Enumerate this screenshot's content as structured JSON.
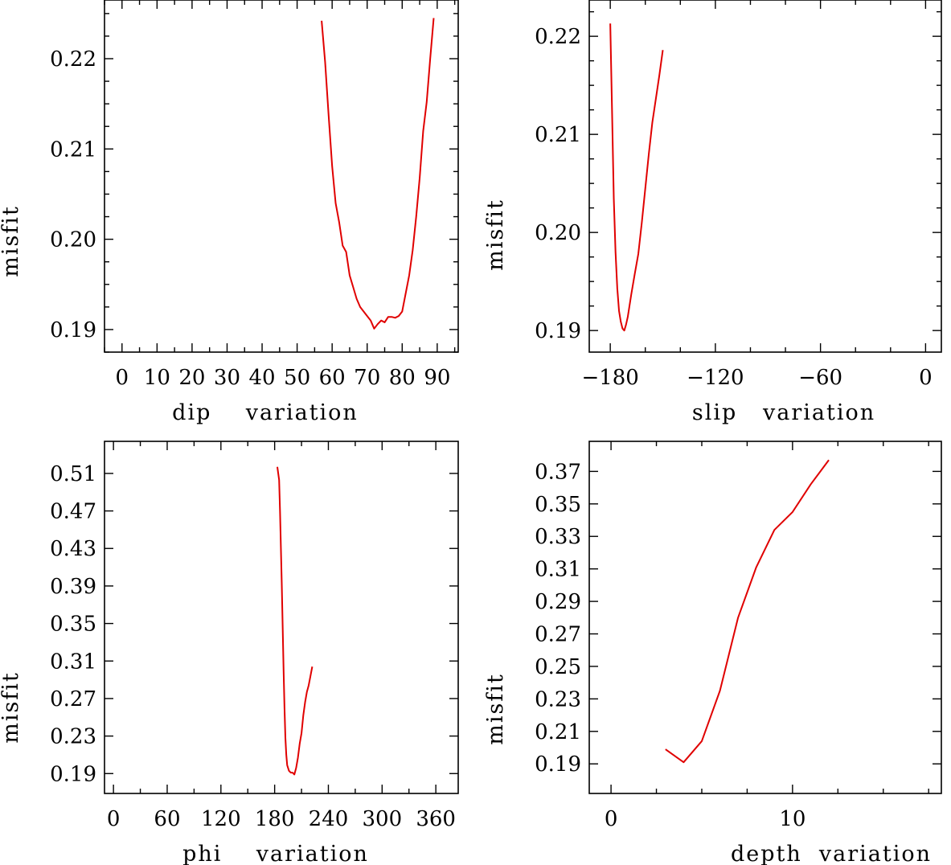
{
  "chart_data": [
    {
      "type": "line",
      "xlabel": "dip    variation",
      "ylabel": "misfit",
      "xlim": [
        -5,
        96
      ],
      "ylim": [
        0.1875,
        0.2265
      ],
      "xticks": [
        0,
        10,
        20,
        30,
        40,
        50,
        60,
        70,
        80,
        90
      ],
      "xtick_labels": [
        "0",
        "10",
        "20",
        "30",
        "40",
        "50",
        "60",
        "70",
        "80",
        "90"
      ],
      "yticks": [
        0.19,
        0.2,
        0.21,
        0.22
      ],
      "ytick_labels": [
        "0.19",
        "0.20",
        "0.21",
        "0.22"
      ],
      "line_color": "#e00000",
      "series": [
        {
          "x": [
            57,
            58,
            59,
            60,
            61,
            62,
            63,
            64,
            65,
            66,
            67,
            68,
            69,
            70,
            71,
            72,
            73,
            74,
            75,
            76,
            77,
            78,
            79,
            80,
            81,
            82,
            83,
            84,
            85,
            86,
            87,
            88,
            89
          ],
          "y": [
            0.2242,
            0.2196,
            0.2137,
            0.2081,
            0.204,
            0.2019,
            0.1993,
            0.1986,
            0.196,
            0.1947,
            0.1934,
            0.1925,
            0.192,
            0.1915,
            0.191,
            0.1901,
            0.1906,
            0.191,
            0.1908,
            0.1914,
            0.1914,
            0.1913,
            0.1915,
            0.192,
            0.194,
            0.196,
            0.1988,
            0.2025,
            0.2068,
            0.212,
            0.2152,
            0.22,
            0.2245
          ]
        }
      ]
    },
    {
      "type": "line",
      "xlabel": "slip   variation",
      "ylabel": "misfit",
      "xlim": [
        -192,
        9
      ],
      "ylim": [
        0.1878,
        0.2237
      ],
      "xticks": [
        -180,
        -120,
        -60,
        0
      ],
      "xtick_labels": [
        "−180",
        "−120",
        "−60",
        "0"
      ],
      "yticks": [
        0.19,
        0.2,
        0.21,
        0.22
      ],
      "ytick_labels": [
        "0.19",
        "0.20",
        "0.21",
        "0.22"
      ],
      "line_color": "#e00000",
      "series": [
        {
          "x": [
            -180,
            -179,
            -178,
            -177,
            -176,
            -175,
            -174,
            -173,
            -172,
            -171,
            -170,
            -168,
            -166,
            -164,
            -162,
            -160,
            -158,
            -156,
            -154,
            -152,
            -150
          ],
          "y": [
            0.2213,
            0.2125,
            0.2035,
            0.198,
            0.1943,
            0.192,
            0.1909,
            0.1902,
            0.19,
            0.1906,
            0.1914,
            0.1937,
            0.1958,
            0.1978,
            0.201,
            0.2045,
            0.208,
            0.2112,
            0.2136,
            0.216,
            0.2186
          ]
        }
      ]
    },
    {
      "type": "line",
      "xlabel": "phi    variation",
      "ylabel": "misfit",
      "xlim": [
        -10,
        385
      ],
      "ylim": [
        0.1688,
        0.5442
      ],
      "xticks": [
        0,
        60,
        120,
        180,
        240,
        300,
        360
      ],
      "xtick_labels": [
        "0",
        "60",
        "120",
        "180",
        "240",
        "300",
        "360"
      ],
      "yticks": [
        0.19,
        0.23,
        0.27,
        0.31,
        0.35,
        0.39,
        0.43,
        0.47,
        0.51
      ],
      "ytick_labels": [
        "0.19",
        "0.23",
        "0.27",
        "0.31",
        "0.35",
        "0.39",
        "0.43",
        "0.47",
        "0.51"
      ],
      "line_color": "#e00000",
      "series": [
        {
          "x": [
            183,
            185,
            186,
            187,
            188,
            189,
            190,
            191,
            192,
            193,
            194,
            196,
            198,
            200,
            202,
            204,
            206,
            208,
            210,
            212,
            214,
            216,
            218,
            220,
            222
          ],
          "y": [
            0.517,
            0.503,
            0.47,
            0.43,
            0.39,
            0.345,
            0.3,
            0.26,
            0.228,
            0.21,
            0.199,
            0.193,
            0.191,
            0.191,
            0.189,
            0.196,
            0.207,
            0.222,
            0.233,
            0.252,
            0.266,
            0.277,
            0.284,
            0.294,
            0.304
          ]
        }
      ]
    },
    {
      "type": "line",
      "xlabel": "depth  variation",
      "ylabel": "misfit",
      "xlim": [
        -1.2,
        18.2
      ],
      "ylim": [
        0.1718,
        0.3885
      ],
      "xticks": [
        0,
        10
      ],
      "xtick_labels": [
        "0",
        "10"
      ],
      "yticks": [
        0.19,
        0.21,
        0.23,
        0.25,
        0.27,
        0.29,
        0.31,
        0.33,
        0.35,
        0.37
      ],
      "ytick_labels": [
        "0.19",
        "0.21",
        "0.23",
        "0.25",
        "0.27",
        "0.29",
        "0.31",
        "0.33",
        "0.35",
        "0.37"
      ],
      "line_color": "#e00000",
      "series": [
        {
          "x": [
            3,
            4,
            5,
            6,
            7,
            8,
            9,
            10,
            11,
            12
          ],
          "y": [
            0.199,
            0.191,
            0.204,
            0.235,
            0.28,
            0.311,
            0.334,
            0.345,
            0.362,
            0.377
          ]
        }
      ]
    }
  ]
}
